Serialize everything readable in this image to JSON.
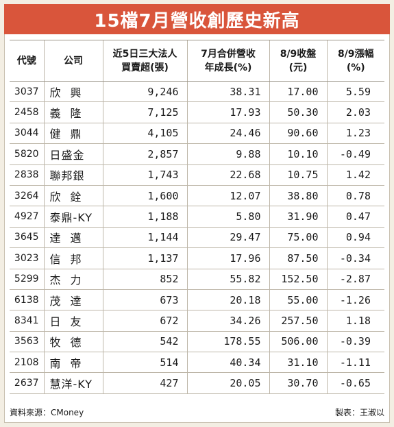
{
  "title": "15檔7月營收創歷史新高",
  "headers": {
    "code": "代號",
    "company": "公司",
    "inst_line1": "近5日三大法人",
    "inst_line2": "買賣超(張)",
    "rev_line1": "7月合併營收",
    "rev_line2": "年成長(%)",
    "close_line1": "8/9收盤",
    "close_line2": "(元)",
    "change_line1": "8/9漲幅",
    "change_line2": "(%)"
  },
  "rows": [
    {
      "code": "3037",
      "company": "欣興",
      "inst": "9,246",
      "rev": "38.31",
      "close": "17.00",
      "change": "5.59"
    },
    {
      "code": "2458",
      "company": "義隆",
      "inst": "7,125",
      "rev": "17.93",
      "close": "50.30",
      "change": "2.03"
    },
    {
      "code": "3044",
      "company": "健鼎",
      "inst": "4,105",
      "rev": "24.46",
      "close": "90.60",
      "change": "1.23"
    },
    {
      "code": "5820",
      "company": "日盛金",
      "inst": "2,857",
      "rev": "9.88",
      "close": "10.10",
      "change": "-0.49"
    },
    {
      "code": "2838",
      "company": "聯邦銀",
      "inst": "1,743",
      "rev": "22.68",
      "close": "10.75",
      "change": "1.42"
    },
    {
      "code": "3264",
      "company": "欣銓",
      "inst": "1,600",
      "rev": "12.07",
      "close": "38.80",
      "change": "0.78"
    },
    {
      "code": "4927",
      "company": "泰鼎-KY",
      "inst": "1,188",
      "rev": "5.80",
      "close": "31.90",
      "change": "0.47"
    },
    {
      "code": "3645",
      "company": "達邁",
      "inst": "1,144",
      "rev": "29.47",
      "close": "75.00",
      "change": "0.94"
    },
    {
      "code": "3023",
      "company": "信邦",
      "inst": "1,137",
      "rev": "17.96",
      "close": "87.50",
      "change": "-0.34"
    },
    {
      "code": "5299",
      "company": "杰力",
      "inst": "852",
      "rev": "55.82",
      "close": "152.50",
      "change": "-2.87"
    },
    {
      "code": "6138",
      "company": "茂達",
      "inst": "673",
      "rev": "20.18",
      "close": "55.00",
      "change": "-1.26"
    },
    {
      "code": "8341",
      "company": "日友",
      "inst": "672",
      "rev": "34.26",
      "close": "257.50",
      "change": "1.18"
    },
    {
      "code": "3563",
      "company": "牧德",
      "inst": "542",
      "rev": "178.55",
      "close": "506.00",
      "change": "-0.39"
    },
    {
      "code": "2108",
      "company": "南帝",
      "inst": "514",
      "rev": "40.34",
      "close": "31.10",
      "change": "-1.11"
    },
    {
      "code": "2637",
      "company": "慧洋-KY",
      "inst": "427",
      "rev": "20.05",
      "close": "30.70",
      "change": "-0.65"
    }
  ],
  "footer": {
    "source": "資料來源：CMoney",
    "maker": "製表：王淑以"
  }
}
